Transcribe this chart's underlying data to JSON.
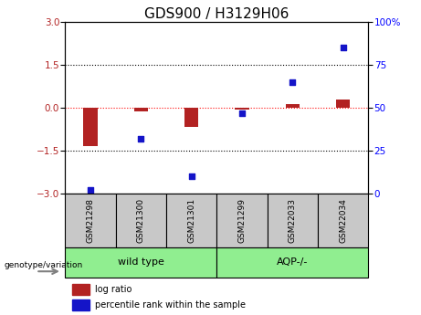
{
  "title": "GDS900 / H3129H06",
  "samples": [
    "GSM21298",
    "GSM21300",
    "GSM21301",
    "GSM21299",
    "GSM22033",
    "GSM22034"
  ],
  "log_ratio": [
    -1.35,
    -0.12,
    -0.65,
    -0.05,
    0.12,
    0.28
  ],
  "percentile_rank": [
    2,
    32,
    10,
    47,
    65,
    85
  ],
  "ylim_left": [
    -3,
    3
  ],
  "ylim_right": [
    0,
    100
  ],
  "yticks_left": [
    -3,
    -1.5,
    0,
    1.5,
    3
  ],
  "yticks_right": [
    0,
    25,
    50,
    75,
    100
  ],
  "hline_y": [
    1.5,
    -1.5
  ],
  "bar_color": "#B22222",
  "dot_color": "#1414C8",
  "background_color": "#FFFFFF",
  "wild_type_label": "wild type",
  "aqp_label": "AQP-/-",
  "genotype_label": "genotype/variation",
  "legend_log_ratio": "log ratio",
  "legend_percentile": "percentile rank within the sample",
  "group_box_color": "#90EE90",
  "sample_box_color": "#C8C8C8",
  "title_fontsize": 11,
  "tick_fontsize": 7.5,
  "label_fontsize": 7.5
}
